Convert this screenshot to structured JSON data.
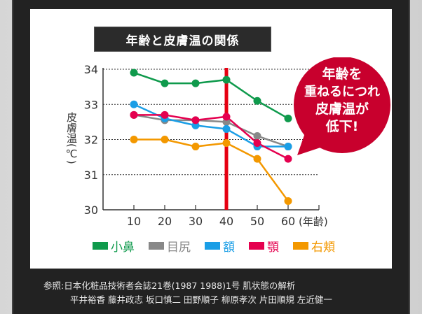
{
  "chart_data": {
    "type": "line",
    "title": "年齢と皮膚温の関係",
    "xlabel": "(年齢)",
    "ylabel": "皮膚温(℃)",
    "x": [
      10,
      20,
      30,
      40,
      50,
      60
    ],
    "x_ticks": [
      "10",
      "20",
      "30",
      "40",
      "50",
      "60"
    ],
    "y_ticks": [
      "30",
      "31",
      "32",
      "33",
      "34"
    ],
    "xlim": [
      0,
      70
    ],
    "ylim": [
      30,
      34
    ],
    "grid": "horizontal-dotted",
    "highlight_x": 40,
    "highlight_color": "#e60012",
    "legend_position": "bottom",
    "series": [
      {
        "name": "小鼻",
        "color": "#0f9a4c",
        "values": [
          33.9,
          33.6,
          33.6,
          33.7,
          33.1,
          32.6
        ]
      },
      {
        "name": "目尻",
        "color": "#888888",
        "values": [
          32.7,
          32.55,
          32.55,
          32.5,
          32.1,
          31.8
        ]
      },
      {
        "name": "額",
        "color": "#1a9ee6",
        "values": [
          33.0,
          32.6,
          32.4,
          32.3,
          31.8,
          31.8
        ]
      },
      {
        "name": "顎",
        "color": "#e5004f",
        "values": [
          32.7,
          32.7,
          32.55,
          32.65,
          31.9,
          31.45
        ]
      },
      {
        "name": "右頬",
        "color": "#f39800",
        "values": [
          32.0,
          32.0,
          31.8,
          31.9,
          31.45,
          30.25
        ]
      }
    ]
  },
  "callout": {
    "lines": [
      "年齢を",
      "重ねるにつれ",
      "皮膚温が",
      "低下!"
    ],
    "color": "#c8002d"
  },
  "reference": {
    "line1": "参照:日本化粧品技術者会誌21巻(1987 1988)1号 肌状態の解析",
    "line2": "平井裕香 藤井政志 坂口慎二 田野順子 柳原孝次 片田順規 左近健一"
  }
}
